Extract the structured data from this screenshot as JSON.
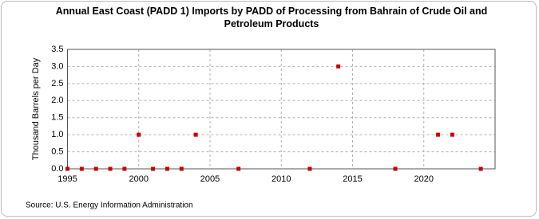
{
  "chart_data": {
    "type": "scatter",
    "title": "Annual East Coast (PADD 1) Imports by PADD of Processing from Bahrain of Crude Oil and Petroleum Products",
    "y_label": "Thousand Barrels per Day",
    "source": "Source: U.S. Energy Information Administration",
    "x": [
      1995,
      1996,
      1997,
      1998,
      1999,
      2000,
      2001,
      2002,
      2003,
      2004,
      2007,
      2012,
      2014,
      2018,
      2021,
      2022,
      2024
    ],
    "values": [
      0,
      0,
      0,
      0,
      0,
      1,
      0,
      0,
      0,
      1,
      0,
      0,
      3,
      0,
      1,
      1,
      0
    ],
    "color": "#cc0000",
    "xlim": [
      1995,
      2025
    ],
    "xticks": [
      1995,
      2000,
      2005,
      2010,
      2015,
      2020
    ],
    "ylim": [
      0,
      3.5
    ],
    "yticks": [
      {
        "value": 0,
        "label": "0.0"
      },
      {
        "value": 0.5,
        "label": "0.5"
      },
      {
        "value": 1,
        "label": "1.0"
      },
      {
        "value": 1.5,
        "label": "1.5"
      },
      {
        "value": 2,
        "label": "2.0"
      },
      {
        "value": 2.5,
        "label": "2.5"
      },
      {
        "value": 3,
        "label": "3.0"
      },
      {
        "value": 3.5,
        "label": "3.5"
      }
    ],
    "grid": true
  }
}
